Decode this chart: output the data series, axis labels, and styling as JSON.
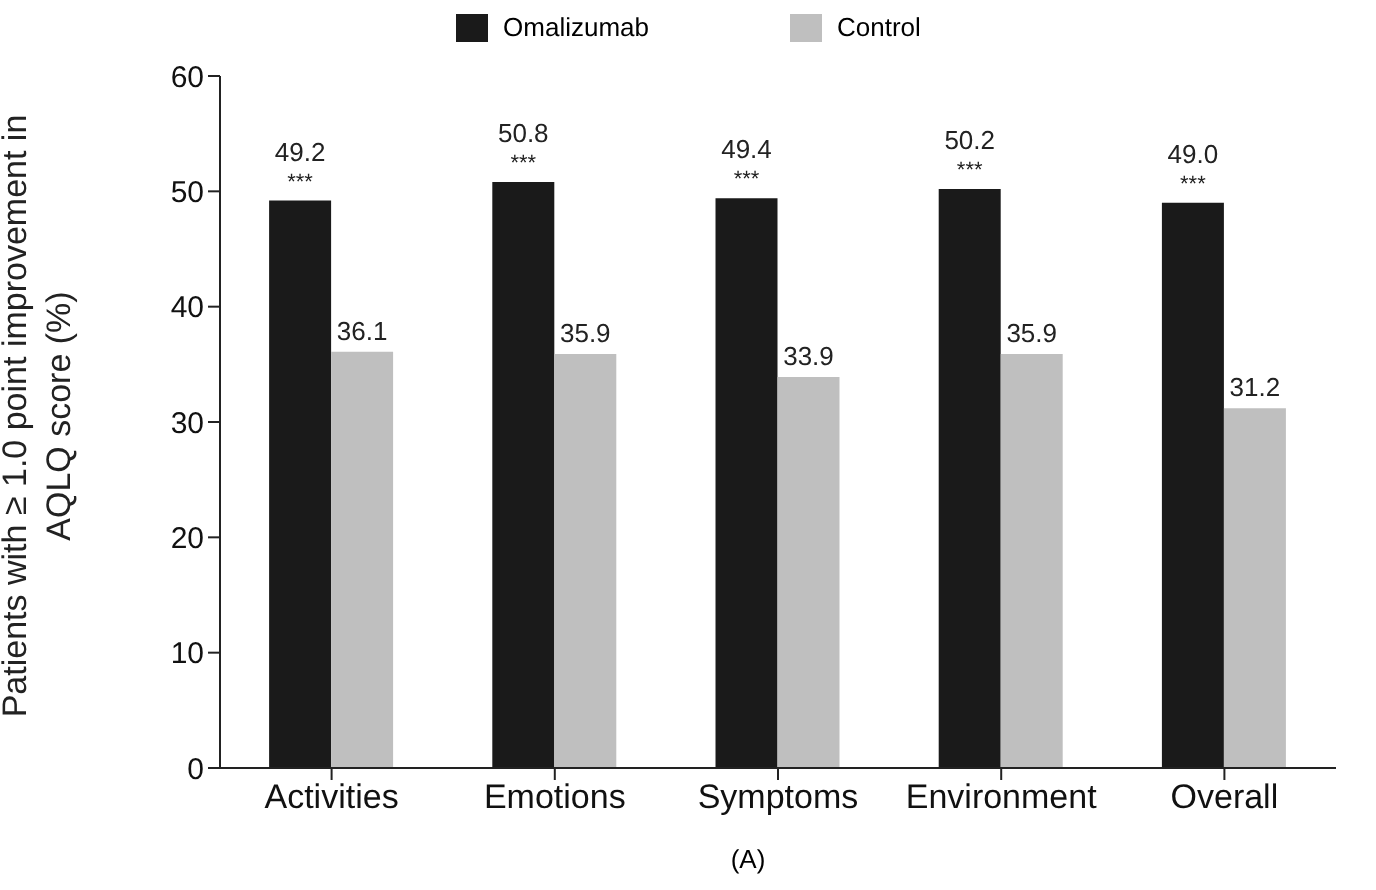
{
  "chart_data": {
    "type": "bar",
    "categories": [
      "Activities",
      "Emotions",
      "Symptoms",
      "Environment",
      "Overall"
    ],
    "series": [
      {
        "name": "Omalizumab",
        "color": "#1a1a1a",
        "values": [
          49.2,
          50.8,
          49.4,
          50.2,
          49.0
        ],
        "value_labels": [
          "49.2",
          "50.8",
          "49.4",
          "50.2",
          "49.0"
        ]
      },
      {
        "name": "Control",
        "color": "#bfbfbf",
        "values": [
          36.1,
          35.9,
          33.9,
          35.9,
          31.2
        ],
        "value_labels": [
          "36.1",
          "35.9",
          "33.9",
          "35.9",
          "31.2"
        ]
      }
    ],
    "ylabel": "Patients with ≥ 1.0 point improvement in AQLQ score (%)",
    "ylim": [
      0,
      60
    ],
    "yticks": [
      0,
      10,
      20,
      30,
      40,
      50,
      60
    ],
    "grid": false,
    "legend": "top",
    "annotations": [
      {
        "text": "***",
        "x": "Activities",
        "y": 49.2
      },
      {
        "text": "***",
        "x": "Emotions",
        "y": 50.8
      },
      {
        "text": "***",
        "x": "Symptoms",
        "y": 49.4
      },
      {
        "text": "***",
        "x": "Environment",
        "y": 50.2
      },
      {
        "text": "***",
        "x": "Overall",
        "y": 49.0
      },
      "(A)"
    ]
  }
}
